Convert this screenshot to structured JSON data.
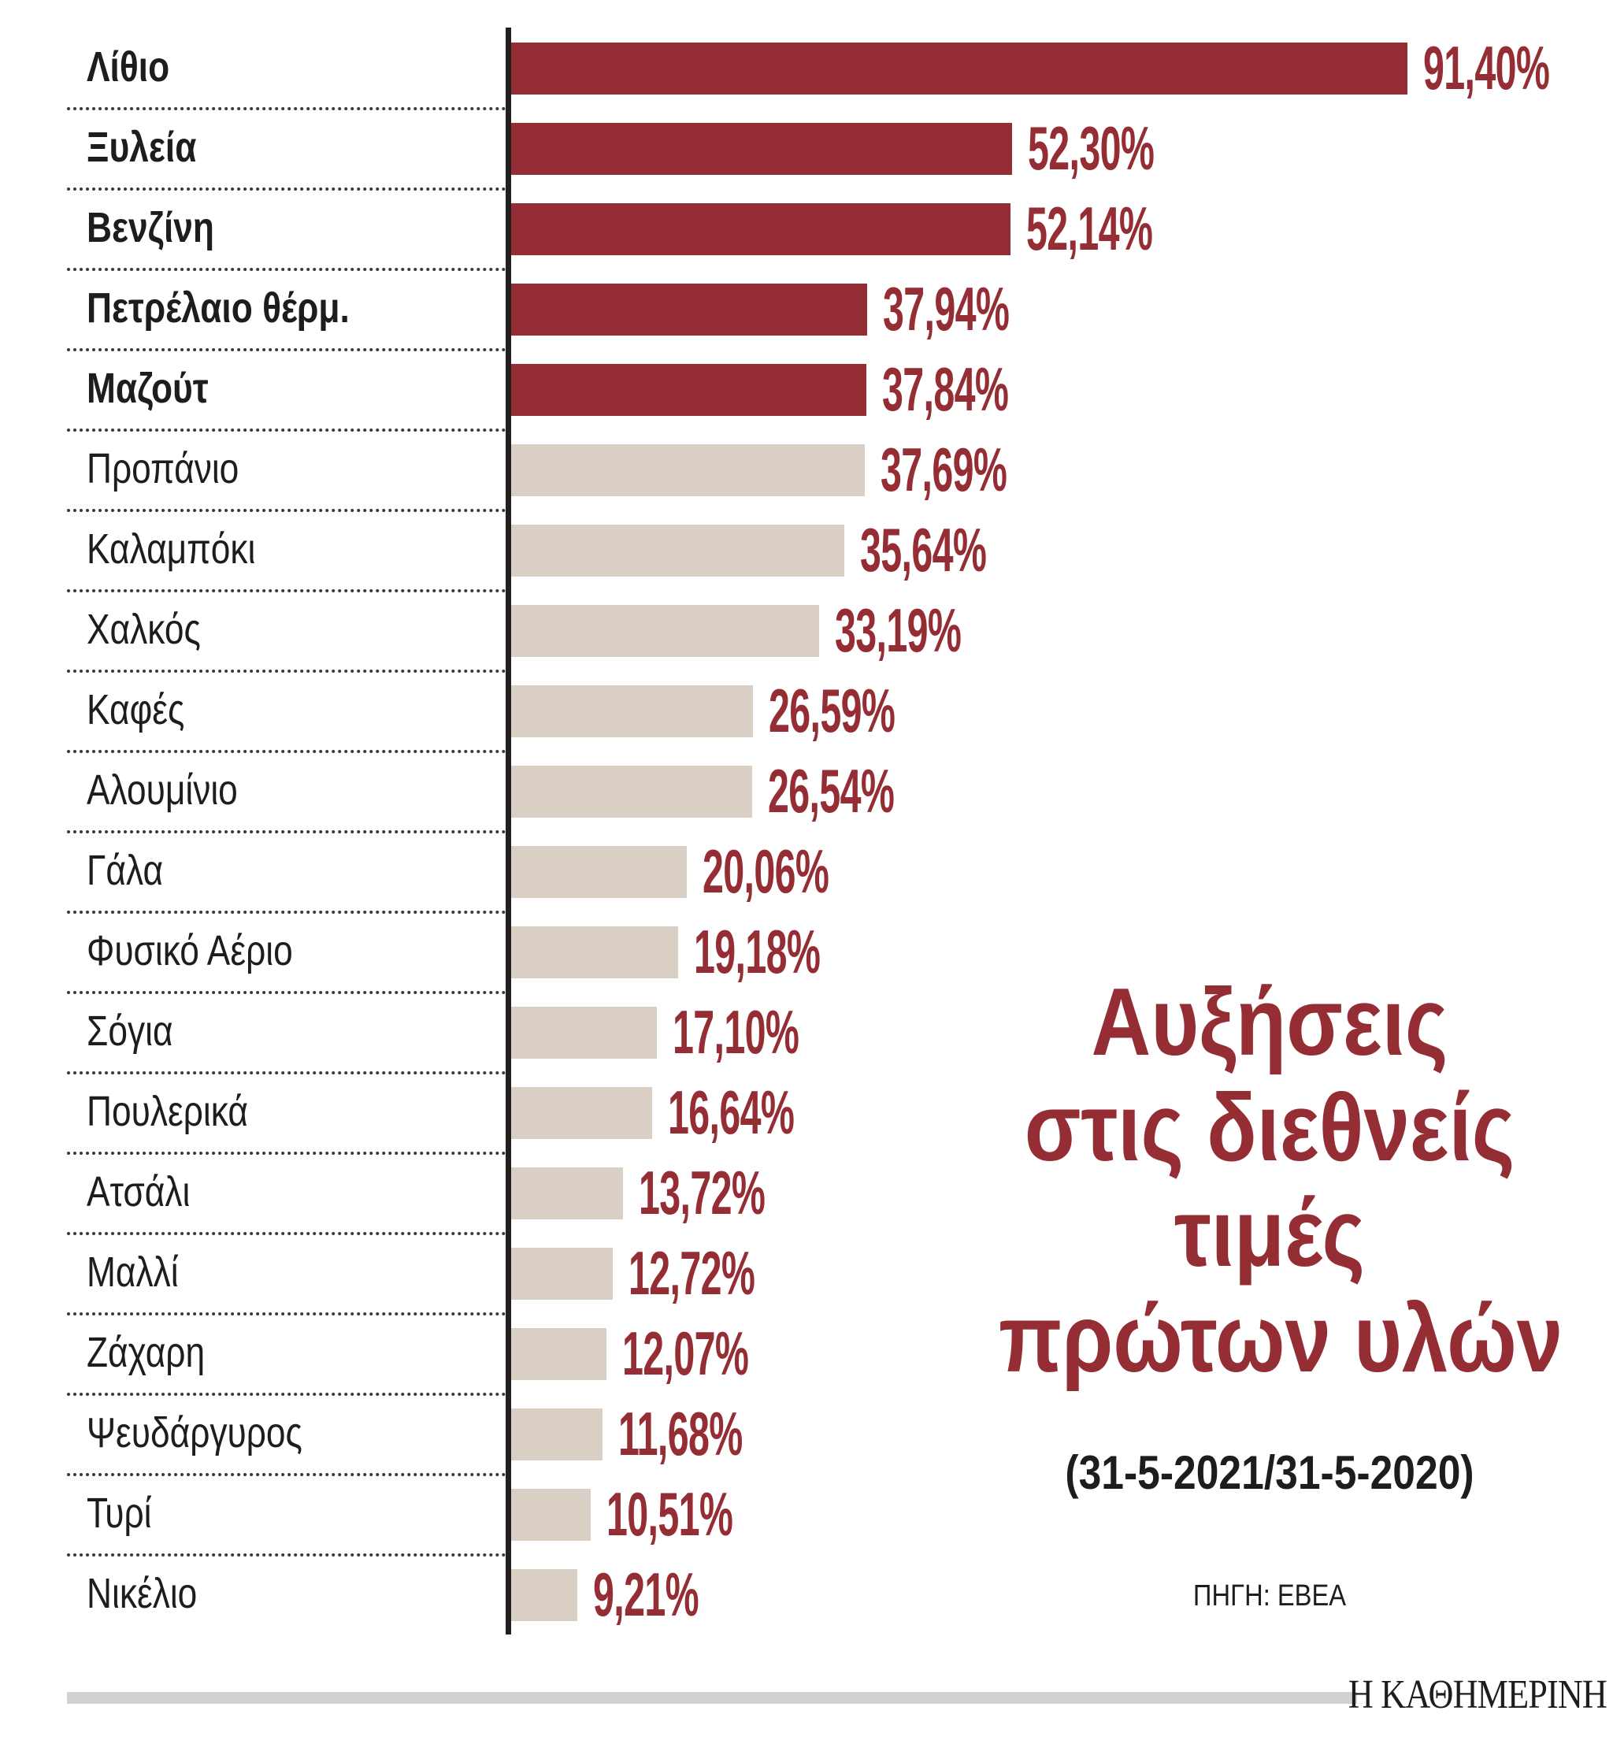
{
  "chart_data": {
    "type": "bar",
    "orientation": "horizontal",
    "title": "Αυξήσεις στις διεθνείς τιμές πρώτων υλών",
    "subtitle": "(31-5-2021/31-5-2020)",
    "source": "ΠΗΓΗ: ΕΒΕΑ",
    "xlabel": "",
    "ylabel": "",
    "unit": "%",
    "grid": false,
    "legend": null,
    "categories": [
      "Λίθιο",
      "Ξυλεία",
      "Βενζίνη",
      "Πετρέλαιο θέρμ.",
      "Μαζούτ",
      "Προπάνιο",
      "Καλαμπόκι",
      "Χαλκός",
      "Καφές",
      "Αλουμίνιο",
      "Γάλα",
      "Φυσικό Αέριο",
      "Σόγια",
      "Πουλερικά",
      "Ατσάλι",
      "Μαλλί",
      "Ζάχαρη",
      "Ψευδάργυρος",
      "Τυρί",
      "Νικέλιο"
    ],
    "values": [
      91.4,
      52.3,
      52.14,
      37.94,
      37.84,
      37.69,
      35.64,
      33.19,
      26.59,
      26.54,
      20.06,
      19.18,
      17.1,
      16.64,
      13.72,
      12.72,
      12.07,
      11.68,
      10.51,
      9.21
    ],
    "value_labels": [
      "91,40%",
      "52,30%",
      "52,14%",
      "37,94%",
      "37,84%",
      "37,69%",
      "35,64%",
      "33,19%",
      "26,59%",
      "26,54%",
      "20,06%",
      "19,18%",
      "17,10%",
      "16,64%",
      "13,72%",
      "12,72%",
      "12,07%",
      "11,68%",
      "10,51%",
      "9,21%"
    ],
    "highlighted": [
      true,
      true,
      true,
      true,
      true,
      false,
      false,
      false,
      false,
      false,
      false,
      false,
      false,
      false,
      false,
      false,
      false,
      false,
      false,
      false
    ]
  },
  "title_lines": [
    "Αυξήσεις",
    "στις διεθνείς",
    "τιμές",
    "πρώτων υλών"
  ],
  "subtitle": "(31-5-2021/31-5-2020)",
  "source": "ΠΗΓΗ: ΕΒΕΑ",
  "publisher": "Η ΚΑΘΗΜΕΡΙΝΗ",
  "colors": {
    "highlight_bar": "#952d34",
    "normal_bar": "#d9cfc4",
    "value_text": "#952d34",
    "title_text": "#952d34",
    "axis": "#231f20",
    "footer_bar": "#d1d1d3"
  }
}
